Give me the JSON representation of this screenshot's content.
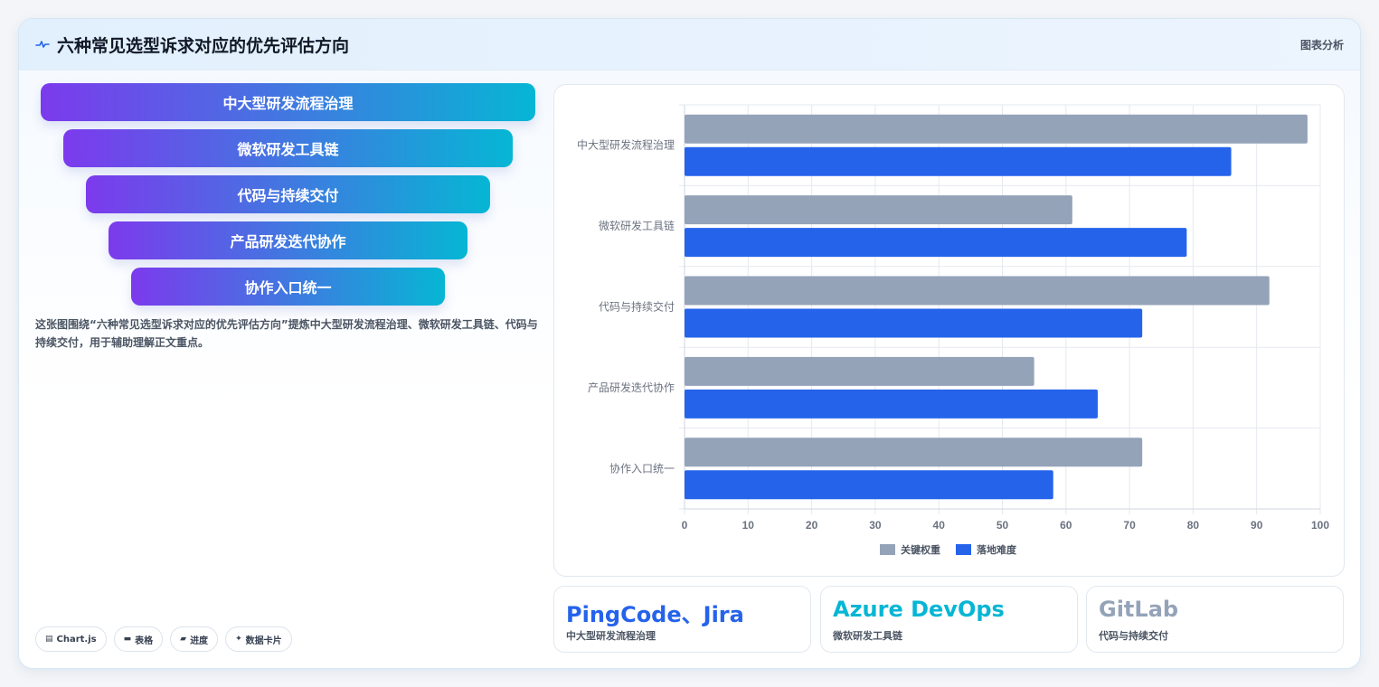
{
  "header": {
    "title": "六种常见选型诉求对应的优先评估方向",
    "right_label": "图表分析",
    "icon": "pulse-icon"
  },
  "funnel": {
    "items": [
      "中大型研发流程治理",
      "微软研发工具链",
      "代码与持续交付",
      "产品研发迭代协作",
      "协作入口统一"
    ]
  },
  "description": "这张图围绕“六种常见选型诉求对应的优先评估方向”提炼中大型研发流程治理、微软研发工具链、代码与持续交付，用于辅助理解正文重点。",
  "chips": [
    {
      "icon": "chart-icon",
      "label": "Chart.js"
    },
    {
      "icon": "table-icon",
      "label": "表格"
    },
    {
      "icon": "progress-icon",
      "label": "进度"
    },
    {
      "icon": "sparkle-icon",
      "label": "数据卡片"
    }
  ],
  "chart_data": {
    "type": "bar",
    "orientation": "horizontal",
    "categories": [
      "中大型研发流程治理",
      "微软研发工具链",
      "代码与持续交付",
      "产品研发迭代协作",
      "协作入口统一"
    ],
    "series": [
      {
        "name": "关键权重",
        "values": [
          98,
          61,
          92,
          55,
          72
        ],
        "color": "#94a3b8"
      },
      {
        "name": "落地难度",
        "values": [
          86,
          79,
          72,
          65,
          58
        ],
        "color": "#2563eb"
      }
    ],
    "xlim": [
      0,
      100
    ],
    "xticks": [
      "0",
      "10",
      "20",
      "30",
      "40",
      "50",
      "60",
      "70",
      "80",
      "90",
      "100"
    ],
    "grid": true,
    "legend": "bottom"
  },
  "stats": [
    {
      "value": "PingCode、Jira",
      "label": "中大型研发流程治理",
      "color": "#2563eb"
    },
    {
      "value": "Azure DevOps",
      "label": "微软研发工具链",
      "color": "#06b6d4"
    },
    {
      "value": "GitLab",
      "label": "代码与持续交付",
      "color": "#94a3b8"
    }
  ]
}
